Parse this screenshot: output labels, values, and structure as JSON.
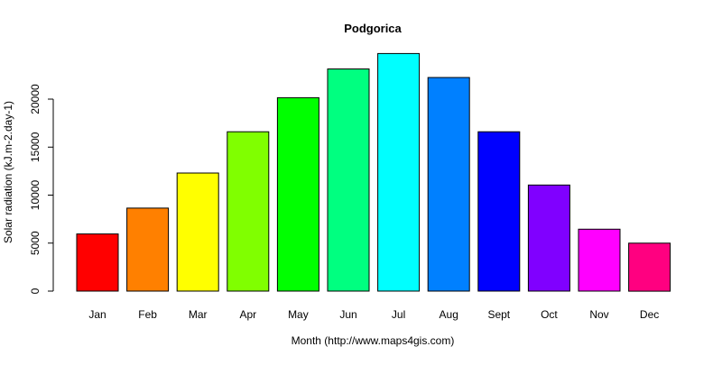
{
  "chart_data": {
    "type": "bar",
    "title": "Podgorica",
    "xlabel": "Month (http://www.maps4gis.com)",
    "ylabel": "Solar radiation (kJ.m-2.day-1)",
    "categories": [
      "Jan",
      "Feb",
      "Mar",
      "Apr",
      "May",
      "Jun",
      "Jul",
      "Aug",
      "Sept",
      "Oct",
      "Nov",
      "Dec"
    ],
    "values": [
      5950,
      8650,
      12300,
      16600,
      20150,
      23150,
      24750,
      22250,
      16600,
      11050,
      6450,
      5000
    ],
    "colors": [
      "#FF0000",
      "#FF8000",
      "#FFFF00",
      "#80FF00",
      "#00FF00",
      "#00FF80",
      "#00FFFF",
      "#0080FF",
      "#0000FF",
      "#8000FF",
      "#FF00FF",
      "#FF0080"
    ],
    "ylim": [
      0,
      25000
    ],
    "yticks": [
      0,
      5000,
      10000,
      15000,
      20000
    ],
    "grid": false,
    "legend": "none"
  }
}
